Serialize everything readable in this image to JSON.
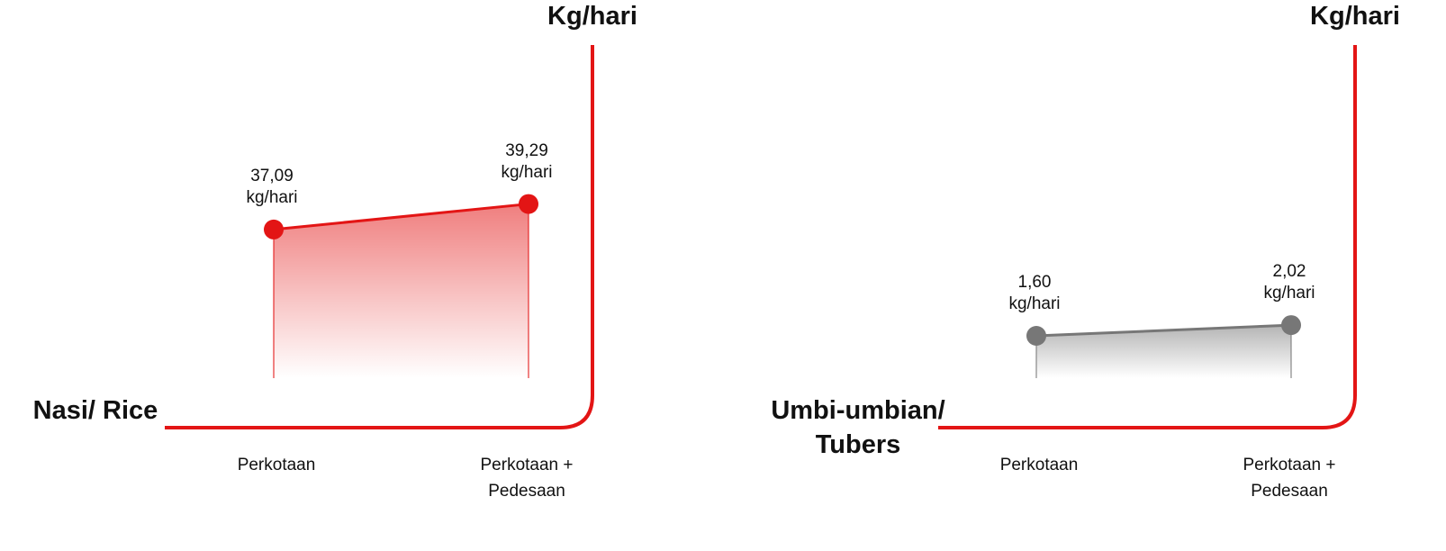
{
  "chart_data": [
    {
      "type": "area",
      "title": "Nasi/ Rice",
      "y_label": "Kg/hari",
      "categories": [
        "Perkotaan",
        "Perkotaan + Pedesaan"
      ],
      "values": [
        37.09,
        39.29
      ],
      "value_labels": [
        "37,09 kg/hari",
        "39,29 kg/hari"
      ],
      "color": "#e31515",
      "axis_color": "#e31515",
      "ylim": [
        20,
        53
      ]
    },
    {
      "type": "area",
      "title": "Umbi-umbian/ Tubers",
      "y_label": "Kg/hari",
      "categories": [
        "Perkotaan",
        "Perkotaan + Pedesaan"
      ],
      "values": [
        1.6,
        2.02
      ],
      "value_labels": [
        "1,60 kg/hari",
        "2,02 kg/hari"
      ],
      "color": "#777777",
      "axis_color": "#e31515",
      "ylim": [
        -2,
        13
      ]
    }
  ]
}
